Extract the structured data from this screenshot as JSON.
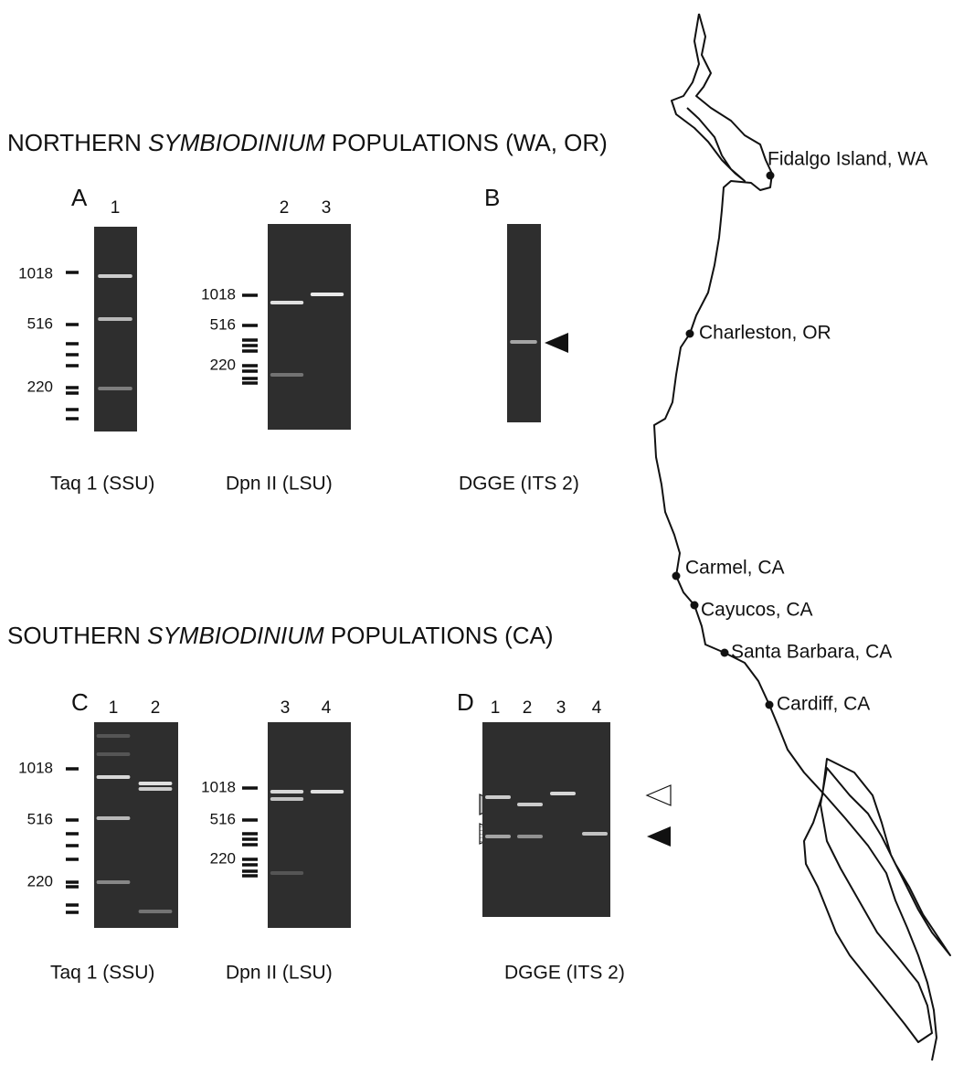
{
  "northern": {
    "title": [
      "NORTHERN ",
      "SYMBIODINIUM",
      " POPULATIONS (WA, OR)"
    ],
    "panel_a": {
      "label": "A",
      "gels": [
        {
          "lanes": [
            "1"
          ],
          "ladder": [
            "1018",
            "516",
            "220"
          ],
          "caption": "Taq 1 (SSU)"
        },
        {
          "lanes": [
            "2",
            "3"
          ],
          "ladder": [
            "1018",
            "516",
            "220"
          ],
          "caption": "Dpn II (LSU)"
        }
      ]
    },
    "panel_b": {
      "label": "B",
      "caption": "DGGE (ITS 2)"
    }
  },
  "southern": {
    "title": [
      "SOUTHERN ",
      "SYMBIODINIUM",
      " POPULATIONS (CA)"
    ],
    "panel_c": {
      "label": "C",
      "gels": [
        {
          "lanes": [
            "1",
            "2"
          ],
          "ladder": [
            "1018",
            "516",
            "220"
          ],
          "caption": "Taq 1 (SSU)"
        },
        {
          "lanes": [
            "3",
            "4"
          ],
          "ladder": [
            "1018",
            "516",
            "220"
          ],
          "caption": "Dpn II (LSU)"
        }
      ]
    },
    "panel_d": {
      "label": "D",
      "lanes": [
        "1",
        "2",
        "3",
        "4"
      ],
      "caption": "DGGE (ITS 2)"
    }
  },
  "map": {
    "locations": [
      "Fidalgo Island, WA",
      "Charleston, OR",
      "Carmel, CA",
      "Cayucos, CA",
      "Santa Barbara, CA",
      "Cardiff, CA"
    ]
  }
}
